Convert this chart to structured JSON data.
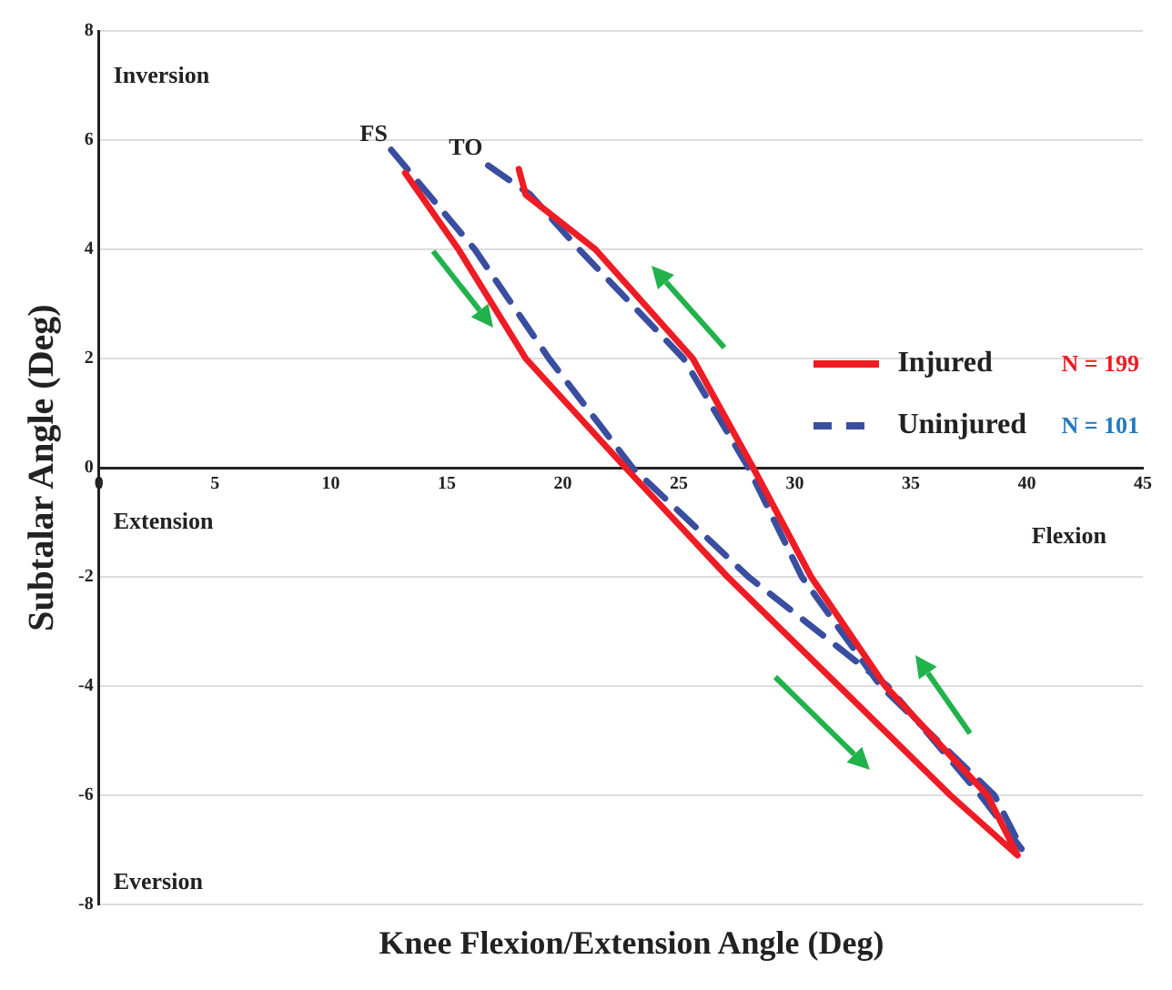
{
  "chart_data": {
    "type": "line",
    "xlabel": "Knee Flexion/Extension Angle (Deg)",
    "ylabel": "Subtalar Angle (Deg)",
    "xlim": [
      0,
      45
    ],
    "xticks": [
      0,
      5,
      10,
      15,
      20,
      25,
      30,
      35,
      40,
      45
    ],
    "ylim": [
      -8,
      8
    ],
    "yticks": [
      -8,
      -6,
      -4,
      -2,
      0,
      2,
      4,
      6,
      8
    ],
    "grid": "y",
    "legend": "right",
    "marker": "none",
    "series": [
      {
        "name": "Injured",
        "color": "#ee1c24",
        "line_style": "solid",
        "x": [
          13.2,
          15.5,
          18.4,
          22.7,
          27.1,
          31.9,
          36.7,
          39.6,
          38.3,
          33.9,
          30.7,
          28.2,
          25.6,
          21.4,
          19.6,
          18.4,
          18.1
        ],
        "values": [
          5.4,
          4,
          2,
          0,
          -2,
          -4,
          -6,
          -7.1,
          -6,
          -4,
          -2,
          0,
          2,
          4,
          4.6,
          5,
          5.47
        ]
      },
      {
        "name": "Uninjured",
        "color": "#3a4ea0",
        "line_style": "dashed",
        "x": [
          12.6,
          16.2,
          19.4,
          23,
          28,
          34,
          38,
          39.8,
          38.6,
          33.7,
          30.3,
          28,
          25.2,
          20.7,
          18.6,
          16.7
        ],
        "values": [
          5.82,
          4,
          2,
          0,
          -2,
          -4,
          -6,
          -7,
          -6,
          -4,
          -2,
          0,
          2,
          4,
          5,
          5.56
        ]
      }
    ],
    "annotations": [
      {
        "text": "FS",
        "x": 12.6,
        "y": 5.82
      },
      {
        "text": "TO",
        "x": 16.7,
        "y": 5.56
      },
      "Inversion",
      "Eversion",
      "Extension",
      "Flexion",
      "N = 199",
      "N = 101"
    ]
  }
}
